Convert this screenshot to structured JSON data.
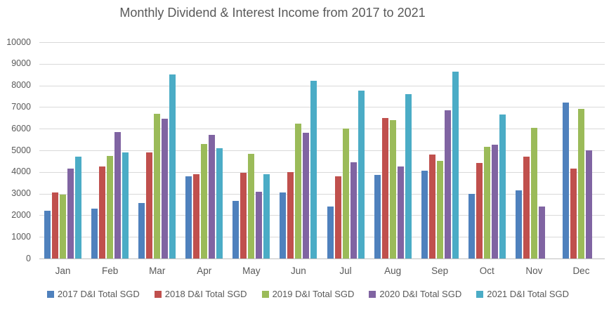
{
  "chart_data": {
    "type": "bar",
    "title": "Monthly Dividend & Interest Income from 2017 to 2021",
    "xlabel": "",
    "ylabel": "",
    "categories": [
      "Jan",
      "Feb",
      "Mar",
      "Apr",
      "May",
      "Jun",
      "Jul",
      "Aug",
      "Sep",
      "Oct",
      "Nov",
      "Dec"
    ],
    "series": [
      {
        "name": "2017 D&I Total SGD",
        "color": "#4F81BD",
        "values": [
          2200,
          2300,
          2550,
          3800,
          2650,
          3050,
          2400,
          3850,
          4050,
          3000,
          3150,
          7200
        ]
      },
      {
        "name": "2018 D&I Total SGD",
        "color": "#C0504D",
        "values": [
          3050,
          4250,
          4900,
          3900,
          3950,
          4000,
          3800,
          6500,
          4800,
          4400,
          4700,
          4150
        ]
      },
      {
        "name": "2019 D&I Total SGD",
        "color": "#9BBB59",
        "values": [
          2950,
          4750,
          6700,
          5300,
          4850,
          6250,
          6000,
          6400,
          4500,
          5150,
          6050,
          6900
        ]
      },
      {
        "name": "2020 D&I Total SGD",
        "color": "#8064A2",
        "values": [
          4150,
          5850,
          6450,
          5700,
          3100,
          5800,
          4450,
          4250,
          6850,
          5250,
          2400,
          5000
        ]
      },
      {
        "name": "2021 D&I Total SGD",
        "color": "#4BACC6",
        "values": [
          4700,
          4900,
          8500,
          5100,
          3900,
          8200,
          7750,
          7600,
          8650,
          6650,
          null,
          null
        ]
      }
    ],
    "ylim": [
      0,
      10000
    ],
    "ytick_step": 1000,
    "y_ticks": [
      0,
      1000,
      2000,
      3000,
      4000,
      5000,
      6000,
      7000,
      8000,
      9000,
      10000
    ],
    "grid": true,
    "legend_position": "bottom"
  },
  "colors": {
    "text": "#595959",
    "gridline": "#D9D9D9",
    "axis_line": "#BFBFBF",
    "background": "#FFFFFF"
  }
}
